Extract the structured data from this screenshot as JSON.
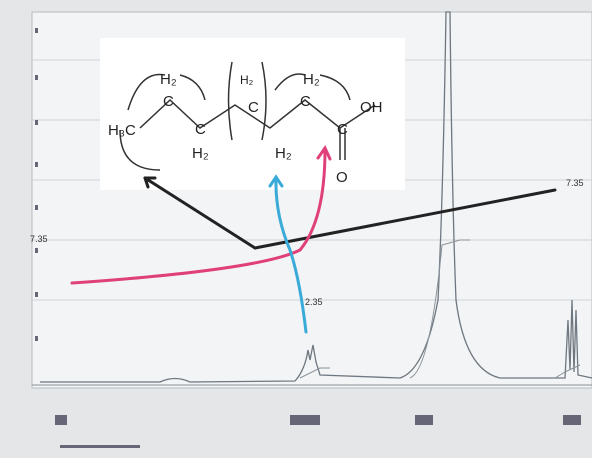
{
  "structure": {
    "atoms": [
      "H₃C",
      "C",
      "H₂",
      "C",
      "H₂",
      "H₂",
      "C",
      "H₂",
      "C",
      "H₂",
      "C",
      "OH",
      "O"
    ]
  },
  "peak_labels": [
    "7.35",
    "7.35",
    "2.35"
  ]
}
